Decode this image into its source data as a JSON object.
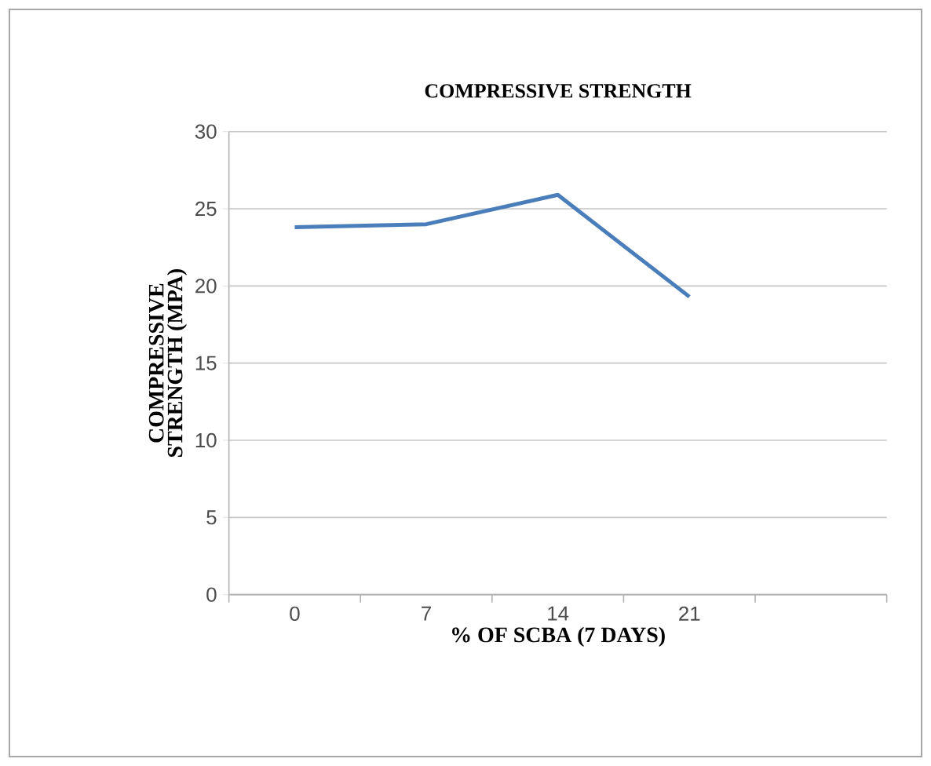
{
  "chart_data": {
    "type": "line",
    "title": "COMPRESSIVE STRENGTH",
    "xlabel": "% OF SCBA (7 DAYS)",
    "ylabel": "COMPRESSIVE STRENGTH (MPA)",
    "categories": [
      "0",
      "7",
      "14",
      "21",
      null
    ],
    "series": [
      {
        "color": "#4a7ebb",
        "values": [
          23.8,
          24.0,
          25.9,
          19.3,
          null
        ]
      }
    ],
    "ylim": [
      0,
      30
    ],
    "yticks": [
      0,
      5,
      10,
      15,
      20,
      25,
      30
    ],
    "grid": "y",
    "marker": "none",
    "line_style": "solid"
  }
}
